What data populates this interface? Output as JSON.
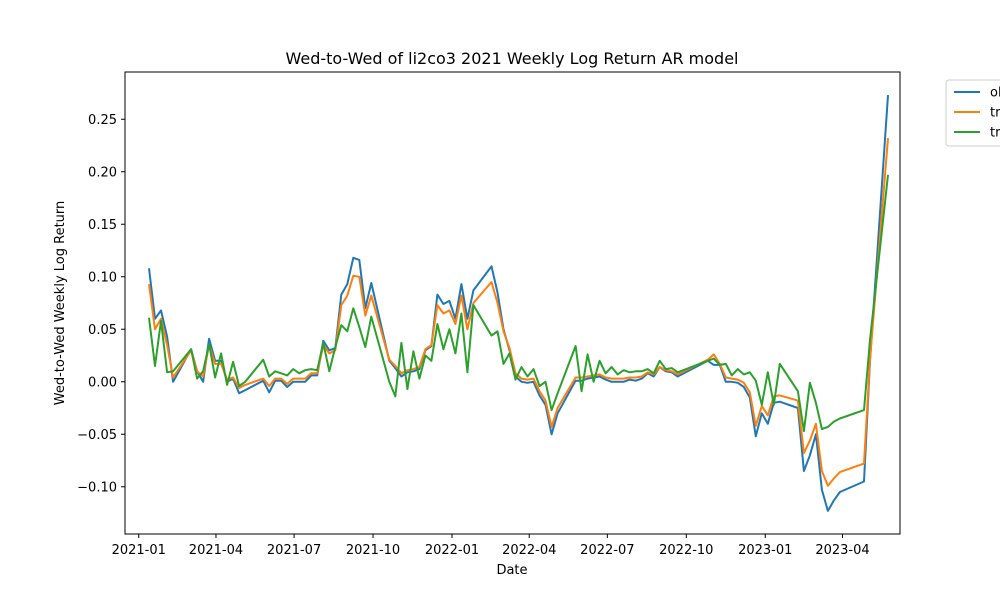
{
  "chart_data": {
    "type": "line",
    "title": "Wed-to-Wed of li2co3 2021 Weekly Log Return AR model",
    "xlabel": "Date",
    "ylabel": "Wed-to-Wed Weekly Log Return",
    "x_ticks": [
      "2021-01",
      "2021-04",
      "2021-07",
      "2021-10",
      "2022-01",
      "2022-04",
      "2022-07",
      "2022-10",
      "2023-01",
      "2023-04"
    ],
    "y_ticks": [
      "−0.10",
      "−0.05",
      "0.00",
      "0.05",
      "0.10",
      "0.15",
      "0.20",
      "0.25"
    ],
    "ylim": [
      -0.145,
      0.295
    ],
    "xlim": [
      "2020-12-16",
      "2023-06-07"
    ],
    "grid": false,
    "legend_position": "outside-top-right",
    "x": [
      "2021-01-13",
      "2021-01-20",
      "2021-01-27",
      "2021-02-03",
      "2021-02-10",
      "2021-03-03",
      "2021-03-10",
      "2021-03-17",
      "2021-03-24",
      "2021-03-31",
      "2021-04-07",
      "2021-04-14",
      "2021-04-21",
      "2021-04-28",
      "2021-05-05",
      "2021-05-26",
      "2021-06-02",
      "2021-06-09",
      "2021-06-16",
      "2021-06-23",
      "2021-06-30",
      "2021-07-07",
      "2021-07-14",
      "2021-07-21",
      "2021-07-28",
      "2021-08-04",
      "2021-08-11",
      "2021-08-18",
      "2021-08-25",
      "2021-09-01",
      "2021-09-08",
      "2021-09-15",
      "2021-09-22",
      "2021-09-29",
      "2021-10-20",
      "2021-10-27",
      "2021-11-03",
      "2021-11-10",
      "2021-11-17",
      "2021-11-24",
      "2021-12-01",
      "2021-12-08",
      "2021-12-15",
      "2021-12-22",
      "2021-12-29",
      "2022-01-05",
      "2022-01-12",
      "2022-01-19",
      "2022-01-26",
      "2022-02-16",
      "2022-02-23",
      "2022-03-02",
      "2022-03-09",
      "2022-03-16",
      "2022-03-23",
      "2022-03-30",
      "2022-04-06",
      "2022-04-13",
      "2022-04-20",
      "2022-04-27",
      "2022-05-04",
      "2022-05-25",
      "2022-06-01",
      "2022-06-08",
      "2022-06-15",
      "2022-06-22",
      "2022-06-29",
      "2022-07-06",
      "2022-07-13",
      "2022-07-20",
      "2022-07-27",
      "2022-08-03",
      "2022-08-10",
      "2022-08-17",
      "2022-08-24",
      "2022-08-31",
      "2022-09-07",
      "2022-09-14",
      "2022-09-21",
      "2022-10-26",
      "2022-11-02",
      "2022-11-09",
      "2022-11-16",
      "2022-11-23",
      "2022-11-30",
      "2022-12-07",
      "2022-12-14",
      "2022-12-21",
      "2022-12-28",
      "2023-01-04",
      "2023-01-11",
      "2023-01-18",
      "2023-02-08",
      "2023-02-15",
      "2023-02-22",
      "2023-03-01",
      "2023-03-08",
      "2023-03-15",
      "2023-03-22",
      "2023-03-29",
      "2023-04-26",
      "2023-05-03",
      "2023-05-24"
    ],
    "series": [
      {
        "name": "ol",
        "color": "#1f77b4",
        "values": [
          0.108,
          0.06,
          0.068,
          0.043,
          0.0,
          0.031,
          0.01,
          0.0,
          0.041,
          0.02,
          0.02,
          0.0,
          0.003,
          -0.011,
          -0.008,
          0.001,
          -0.01,
          0.001,
          0.001,
          -0.005,
          0.0,
          0.0,
          0.0,
          0.006,
          0.006,
          0.039,
          0.03,
          0.032,
          0.083,
          0.093,
          0.118,
          0.116,
          0.07,
          0.094,
          0.02,
          0.013,
          0.005,
          0.009,
          0.01,
          0.012,
          0.03,
          0.034,
          0.083,
          0.074,
          0.077,
          0.06,
          0.093,
          0.06,
          0.087,
          0.11,
          0.085,
          0.05,
          0.03,
          0.005,
          0.0,
          -0.001,
          0.0,
          -0.013,
          -0.022,
          -0.05,
          -0.03,
          0.001,
          0.001,
          0.003,
          0.004,
          0.005,
          0.002,
          0.0,
          0.0,
          0.0,
          0.002,
          0.001,
          0.003,
          0.008,
          0.005,
          0.014,
          0.01,
          0.009,
          0.005,
          0.02,
          0.016,
          0.016,
          0.0,
          0.0,
          -0.001,
          -0.005,
          -0.015,
          -0.052,
          -0.03,
          -0.04,
          -0.02,
          -0.019,
          -0.025,
          -0.085,
          -0.07,
          -0.05,
          -0.103,
          -0.123,
          -0.113,
          -0.105,
          -0.095,
          0.02,
          0.273
        ]
      },
      {
        "name": "tr",
        "color": "#ff7f0e",
        "values": [
          0.093,
          0.05,
          0.06,
          0.035,
          0.004,
          0.03,
          0.01,
          0.005,
          0.035,
          0.017,
          0.017,
          0.002,
          0.004,
          -0.006,
          -0.003,
          0.003,
          -0.004,
          0.003,
          0.003,
          -0.002,
          0.003,
          0.003,
          0.003,
          0.008,
          0.008,
          0.035,
          0.027,
          0.03,
          0.073,
          0.082,
          0.101,
          0.1,
          0.063,
          0.082,
          0.021,
          0.015,
          0.008,
          0.011,
          0.012,
          0.014,
          0.031,
          0.035,
          0.073,
          0.065,
          0.068,
          0.055,
          0.082,
          0.05,
          0.075,
          0.095,
          0.075,
          0.048,
          0.032,
          0.008,
          0.003,
          0.002,
          0.003,
          -0.009,
          -0.018,
          -0.043,
          -0.025,
          0.004,
          0.004,
          0.005,
          0.006,
          0.007,
          0.004,
          0.003,
          0.003,
          0.003,
          0.004,
          0.004,
          0.005,
          0.009,
          0.007,
          0.014,
          0.011,
          0.01,
          0.007,
          0.021,
          0.026,
          0.017,
          0.004,
          0.003,
          0.002,
          -0.001,
          -0.01,
          -0.042,
          -0.023,
          -0.032,
          -0.014,
          -0.013,
          -0.018,
          -0.068,
          -0.056,
          -0.04,
          -0.085,
          -0.099,
          -0.092,
          -0.086,
          -0.078,
          0.021,
          0.232
        ]
      },
      {
        "name": "tr",
        "color": "#2ca02c",
        "values": [
          0.061,
          0.015,
          0.058,
          0.009,
          0.01,
          0.031,
          0.003,
          0.01,
          0.036,
          0.004,
          0.027,
          -0.003,
          0.019,
          -0.004,
          0.0,
          0.021,
          0.005,
          0.01,
          0.008,
          0.006,
          0.012,
          0.008,
          0.011,
          0.012,
          0.011,
          0.037,
          0.01,
          0.033,
          0.054,
          0.048,
          0.07,
          0.052,
          0.033,
          0.062,
          0.0,
          -0.014,
          0.037,
          -0.007,
          0.029,
          0.003,
          0.025,
          0.02,
          0.055,
          0.031,
          0.05,
          0.027,
          0.065,
          0.009,
          0.073,
          0.044,
          0.048,
          0.017,
          0.027,
          0.002,
          0.014,
          0.005,
          0.012,
          -0.004,
          0.0,
          -0.027,
          -0.011,
          0.034,
          -0.009,
          0.026,
          0.0,
          0.02,
          0.008,
          0.014,
          0.007,
          0.011,
          0.009,
          0.01,
          0.01,
          0.012,
          0.008,
          0.02,
          0.012,
          0.013,
          0.009,
          0.02,
          0.022,
          0.016,
          0.017,
          0.006,
          0.012,
          0.007,
          0.009,
          0.001,
          -0.022,
          0.009,
          -0.022,
          0.017,
          -0.009,
          -0.047,
          -0.001,
          -0.02,
          -0.045,
          -0.043,
          -0.038,
          -0.035,
          -0.027,
          0.04,
          0.197
        ]
      }
    ]
  }
}
